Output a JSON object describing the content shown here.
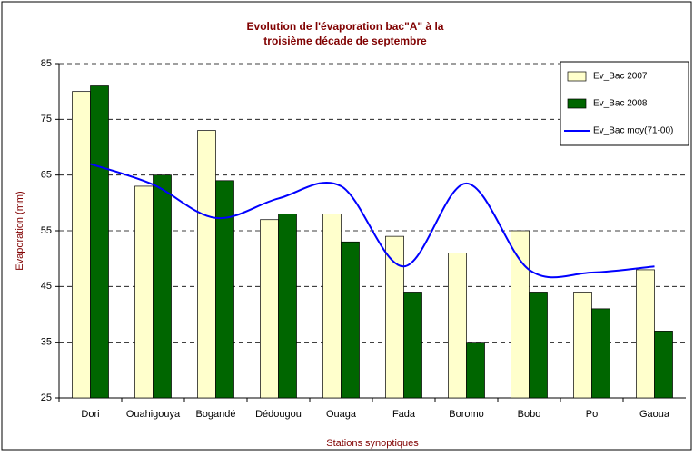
{
  "chart_data": {
    "type": "bar_line",
    "title": [
      "Evolution de l'évaporation bac\"A\" à la",
      "troisième décade de septembre"
    ],
    "y_label": "Evaporation (mm)",
    "x_label": "Stations synoptiques",
    "categories": [
      "Dori",
      "Ouahigouya",
      "Bogandé",
      "Dédougou",
      "Ouaga",
      "Fada",
      "Boromo",
      "Bobo",
      "Po",
      "Gaoua"
    ],
    "series": [
      {
        "name": "Ev_Bac 2007",
        "type": "bar",
        "color": "#ffffcc",
        "values": [
          80,
          63,
          73,
          57,
          58,
          54,
          51,
          55,
          44,
          48
        ]
      },
      {
        "name": "Ev_Bac 2008",
        "type": "bar",
        "color": "#006600",
        "values": [
          81,
          65,
          64,
          58,
          53,
          44,
          35,
          44,
          41,
          37
        ]
      },
      {
        "name": "Ev_Bac moy(71-00)",
        "type": "line",
        "color": "#0000ff",
        "values": [
          67,
          63.3,
          57.3,
          60.8,
          63,
          48.6,
          63.5,
          48,
          47.5,
          48.6
        ]
      }
    ],
    "ylim": [
      25,
      85
    ],
    "yticks": [
      25,
      35,
      45,
      55,
      65,
      75,
      85
    ],
    "grid": true,
    "legend": "top-right"
  }
}
